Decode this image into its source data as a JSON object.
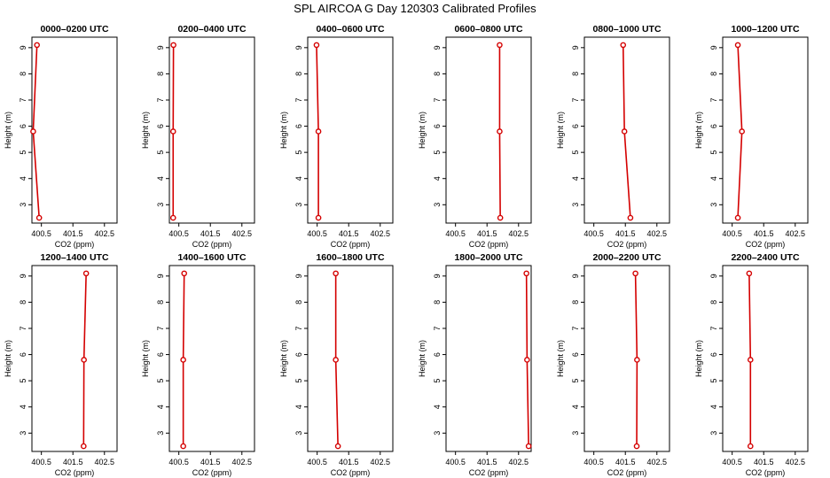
{
  "title": "SPL AIRCOA G  Day 120303  Calibrated Profiles",
  "colors": {
    "line": "#d40000",
    "marker": "#d40000",
    "axis": "#000000"
  },
  "chart_data": {
    "type": "line",
    "layout": "grid 2x6",
    "xlabel": "CO2 (ppm)",
    "ylabel": "Height (m)",
    "xlim": [
      400.2,
      402.9
    ],
    "ylim": [
      2.3,
      9.4
    ],
    "xticks": [
      400.5,
      401.5,
      402.5
    ],
    "xtick_labels": [
      "400.5",
      "401.5",
      "402.5"
    ],
    "yticks": [
      3,
      4,
      5,
      6,
      7,
      8,
      9
    ],
    "ytick_labels": [
      "3",
      "4",
      "5",
      "6",
      "7",
      "8",
      "9"
    ],
    "grid": false,
    "panels": [
      {
        "title": "0000–0200 UTC",
        "points": [
          {
            "x": 400.36,
            "y": 9.1
          },
          {
            "x": 400.24,
            "y": 5.8
          },
          {
            "x": 400.43,
            "y": 2.5
          }
        ]
      },
      {
        "title": "0200–0400 UTC",
        "points": [
          {
            "x": 400.33,
            "y": 9.1
          },
          {
            "x": 400.32,
            "y": 5.8
          },
          {
            "x": 400.32,
            "y": 2.5
          }
        ]
      },
      {
        "title": "0400–0600 UTC",
        "points": [
          {
            "x": 400.48,
            "y": 9.1
          },
          {
            "x": 400.54,
            "y": 5.8
          },
          {
            "x": 400.54,
            "y": 2.5
          }
        ]
      },
      {
        "title": "0600–0800 UTC",
        "points": [
          {
            "x": 401.9,
            "y": 9.1
          },
          {
            "x": 401.9,
            "y": 5.8
          },
          {
            "x": 401.92,
            "y": 2.5
          }
        ]
      },
      {
        "title": "0800–1000 UTC",
        "points": [
          {
            "x": 401.43,
            "y": 9.1
          },
          {
            "x": 401.47,
            "y": 5.8
          },
          {
            "x": 401.66,
            "y": 2.5
          }
        ]
      },
      {
        "title": "1000–1200 UTC",
        "points": [
          {
            "x": 400.68,
            "y": 9.1
          },
          {
            "x": 400.81,
            "y": 5.8
          },
          {
            "x": 400.68,
            "y": 2.5
          }
        ]
      },
      {
        "title": "1200–1400 UTC",
        "points": [
          {
            "x": 401.92,
            "y": 9.1
          },
          {
            "x": 401.85,
            "y": 5.8
          },
          {
            "x": 401.84,
            "y": 2.5
          }
        ]
      },
      {
        "title": "1400–1600 UTC",
        "points": [
          {
            "x": 400.67,
            "y": 9.1
          },
          {
            "x": 400.64,
            "y": 5.8
          },
          {
            "x": 400.64,
            "y": 2.5
          }
        ]
      },
      {
        "title": "1600–1800 UTC",
        "points": [
          {
            "x": 401.09,
            "y": 9.1
          },
          {
            "x": 401.09,
            "y": 5.8
          },
          {
            "x": 401.16,
            "y": 2.5
          }
        ]
      },
      {
        "title": "1800–2000 UTC",
        "points": [
          {
            "x": 402.75,
            "y": 9.1
          },
          {
            "x": 402.77,
            "y": 5.8
          },
          {
            "x": 402.82,
            "y": 2.5
          }
        ]
      },
      {
        "title": "2000–2200 UTC",
        "points": [
          {
            "x": 401.82,
            "y": 9.1
          },
          {
            "x": 401.87,
            "y": 5.8
          },
          {
            "x": 401.86,
            "y": 2.5
          }
        ]
      },
      {
        "title": "2200–2400 UTC",
        "points": [
          {
            "x": 401.04,
            "y": 9.1
          },
          {
            "x": 401.08,
            "y": 5.8
          },
          {
            "x": 401.08,
            "y": 2.5
          }
        ]
      }
    ]
  }
}
